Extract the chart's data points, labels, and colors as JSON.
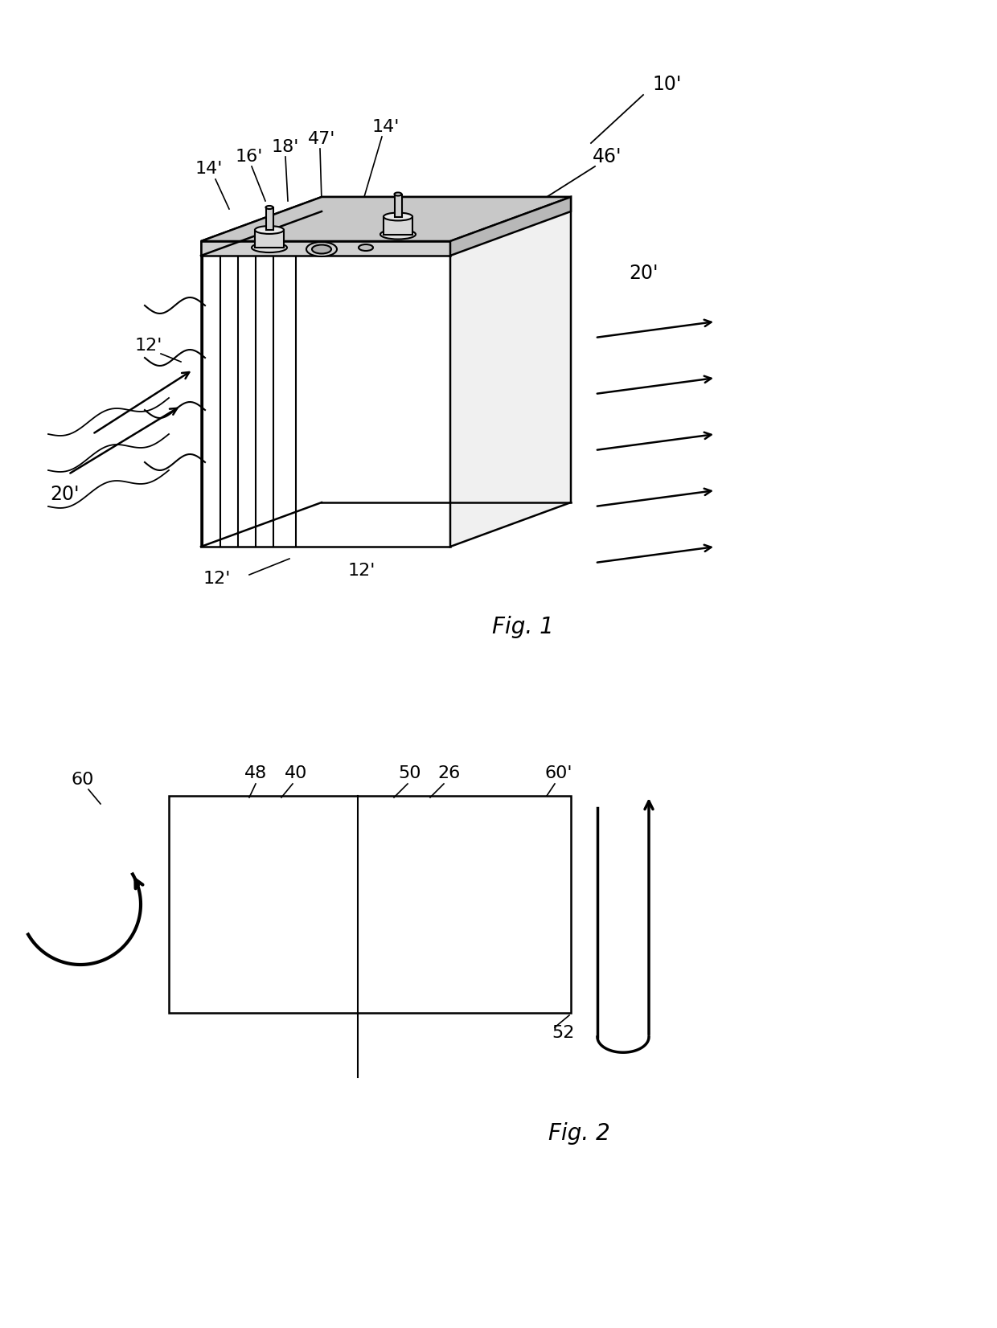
{
  "bg_color": "#ffffff",
  "fig_width": 12.4,
  "fig_height": 16.52,
  "fig1_label": "Fig. 1",
  "fig2_label": "Fig. 2",
  "labels": {
    "10p": "10'",
    "12p_side": "12'",
    "12p_bottom_left": "12'",
    "12p_bottom_right": "12'",
    "14p_left": "14'",
    "14p_right": "14'",
    "16p": "16'",
    "18p": "18'",
    "20p_left": "20'",
    "20p_right": "20'",
    "46p": "46'",
    "47p": "47'",
    "48": "48",
    "40": "40",
    "50": "50",
    "26": "26",
    "60p_right": "60'",
    "60_left": "60",
    "52": "52"
  }
}
